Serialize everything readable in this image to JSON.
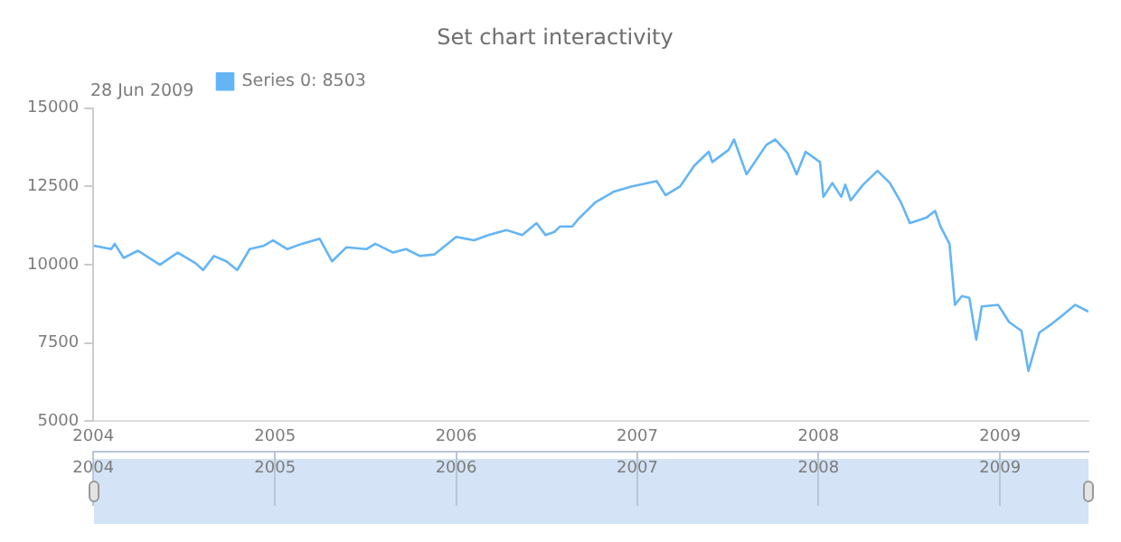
{
  "chart_data": {
    "type": "line",
    "title": "Set chart interactivity",
    "annotations": [
      "28 Jun 2009"
    ],
    "legend": "top left",
    "grid": false,
    "marker": "none",
    "line_style": "solid",
    "x": [
      "2004-01-02",
      "2004-02-06",
      "2004-02-13",
      "2004-03-02",
      "2004-03-31",
      "2004-05-14",
      "2004-06-19",
      "2004-07-25",
      "2004-08-09",
      "2004-08-31",
      "2004-09-25",
      "2004-10-17",
      "2004-11-11",
      "2004-12-10",
      "2004-12-28",
      "2005-01-26",
      "2005-02-24",
      "2005-04-01",
      "2005-04-26",
      "2005-05-25",
      "2005-07-04",
      "2005-07-22",
      "2005-08-27",
      "2005-09-22",
      "2005-10-20",
      "2005-11-18",
      "2006-01-01",
      "2006-02-06",
      "2006-03-07",
      "2006-04-12",
      "2006-05-14",
      "2006-06-12",
      "2006-06-30",
      "2006-07-18",
      "2006-07-29",
      "2006-08-23",
      "2006-09-03",
      "2006-09-28",
      "2006-10-09",
      "2006-11-14",
      "2006-12-20",
      "2007-02-09",
      "2007-02-27",
      "2007-03-28",
      "2007-04-26",
      "2007-05-25",
      "2007-06-01",
      "2007-07-04",
      "2007-07-15",
      "2007-08-09",
      "2007-09-18",
      "2007-10-06",
      "2007-10-31",
      "2007-11-18",
      "2007-12-06",
      "2008-01-04",
      "2008-01-11",
      "2008-01-29",
      "2008-02-16",
      "2008-02-24",
      "2008-03-06",
      "2008-03-31",
      "2008-04-29",
      "2008-05-24",
      "2008-06-15",
      "2008-07-03",
      "2008-08-05",
      "2008-08-23",
      "2008-09-03",
      "2008-09-21",
      "2008-10-02",
      "2008-10-16",
      "2008-10-31",
      "2008-11-14",
      "2008-11-25",
      "2008-12-28",
      "2009-01-19",
      "2009-02-13",
      "2009-02-27",
      "2009-03-21",
      "2009-04-15",
      "2009-05-07",
      "2009-06-01",
      "2009-06-28"
    ],
    "series": [
      {
        "name": "Series 0: 8503",
        "color": "#64b5f6",
        "values": [
          10610,
          10500,
          10670,
          10220,
          10450,
          10000,
          10390,
          10050,
          9830,
          10280,
          10110,
          9830,
          10500,
          10610,
          10780,
          10500,
          10670,
          10830,
          10110,
          10560,
          10500,
          10670,
          10390,
          10500,
          10280,
          10330,
          10890,
          10780,
          10950,
          11110,
          10950,
          11330,
          10950,
          11050,
          11220,
          11220,
          11440,
          11830,
          12000,
          12330,
          12500,
          12670,
          12220,
          12500,
          13170,
          13610,
          13280,
          13670,
          14000,
          12890,
          13830,
          14000,
          13560,
          12890,
          13610,
          13280,
          12170,
          12610,
          12170,
          12560,
          12060,
          12560,
          13000,
          12610,
          12000,
          11330,
          11500,
          11720,
          11220,
          10670,
          8720,
          9000,
          8940,
          7610,
          8670,
          8720,
          8170,
          7890,
          6610,
          7830,
          8110,
          8390,
          8720,
          8503
        ]
      }
    ],
    "xlim": [
      "2004-01-01",
      "2009-06-28"
    ],
    "xticks": [
      "2004",
      "2005",
      "2006",
      "2007",
      "2008",
      "2009"
    ],
    "x2lim": [
      "2004-01-01",
      "2009-06-28"
    ],
    "x2ticks": [
      "2004",
      "2005",
      "2006",
      "2007",
      "2008",
      "2009"
    ],
    "ylim": [
      5000,
      15000
    ],
    "yticks": [
      5000,
      7500,
      10000,
      12500,
      15000
    ]
  }
}
